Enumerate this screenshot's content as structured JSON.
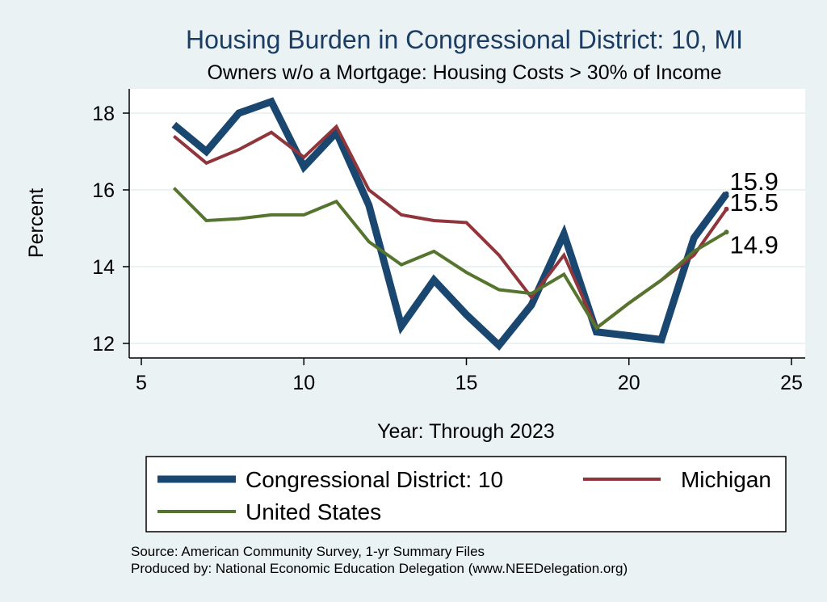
{
  "chart_data": {
    "type": "line",
    "title": "Housing Burden in Congressional District:  10, MI",
    "subtitle": "Owners w/o a Mortgage: Housing Costs > 30% of Income",
    "xlabel": "Year: Through 2023",
    "ylabel": "Percent",
    "xlim": [
      5,
      25
    ],
    "ylim": [
      11.7,
      18.7
    ],
    "xticks": [
      5,
      10,
      15,
      20,
      25
    ],
    "yticks": [
      12,
      14,
      16,
      18
    ],
    "grid": true,
    "legend_position": "bottom",
    "series": [
      {
        "name": "Congressional District:  10",
        "color": "#1a476f",
        "x": [
          6,
          7,
          8,
          9,
          10,
          11,
          12,
          13,
          14,
          15,
          16,
          17,
          18,
          19,
          20,
          21,
          22,
          23
        ],
        "values": [
          17.7,
          17.0,
          18.0,
          18.3,
          16.6,
          17.5,
          15.6,
          12.45,
          13.65,
          12.75,
          11.95,
          13.0,
          14.85,
          12.3,
          12.2,
          12.1,
          14.75,
          15.9
        ],
        "end_label": "15.9"
      },
      {
        "name": "Michigan",
        "color": "#90353b",
        "x": [
          6,
          7,
          8,
          9,
          10,
          11,
          12,
          13,
          14,
          15,
          16,
          17,
          18,
          19,
          20,
          21,
          22,
          23
        ],
        "values": [
          17.4,
          16.7,
          17.05,
          17.5,
          16.85,
          17.65,
          16.0,
          15.35,
          15.2,
          15.15,
          14.3,
          13.2,
          14.3,
          12.4,
          13.05,
          13.65,
          14.3,
          15.5
        ],
        "end_label": "15.5"
      },
      {
        "name": "United States",
        "color": "#55752f",
        "x": [
          6,
          7,
          8,
          9,
          10,
          11,
          12,
          13,
          14,
          15,
          16,
          17,
          18,
          19,
          20,
          21,
          22,
          23
        ],
        "values": [
          16.05,
          15.2,
          15.25,
          15.35,
          15.35,
          15.7,
          14.65,
          14.05,
          14.4,
          13.85,
          13.4,
          13.3,
          13.8,
          12.4,
          13.05,
          13.65,
          14.4,
          14.9
        ],
        "end_label": "14.9"
      }
    ]
  },
  "source_lines": [
    "Source: American Community Survey, 1-yr Summary Files",
    "Produced by: National Economic Education Delegation (www.NEEDelegation.org)"
  ]
}
